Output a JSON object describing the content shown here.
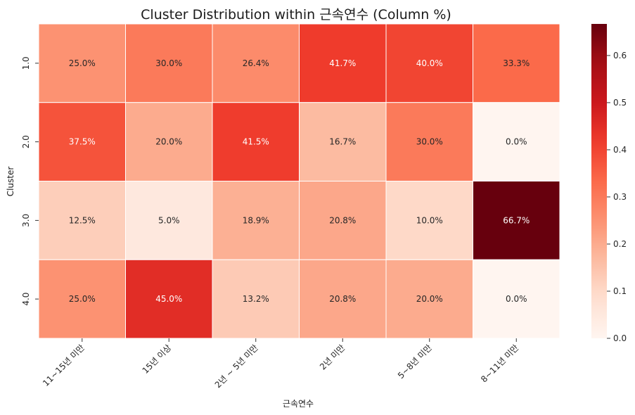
{
  "chart_data": {
    "type": "heatmap",
    "title": "Cluster Distribution within 근속연수 (Column %)",
    "xlabel": "근속연수",
    "ylabel": "Cluster",
    "x_categories": [
      "11~15년 미만",
      "15년 이상",
      "2년 ~ 5년 미만",
      "2년 미만",
      "5~8년 미만",
      "8~11년 미만"
    ],
    "y_categories": [
      "1.0",
      "2.0",
      "3.0",
      "4.0"
    ],
    "values": [
      [
        0.25,
        0.3,
        0.264,
        0.417,
        0.4,
        0.333
      ],
      [
        0.375,
        0.2,
        0.415,
        0.167,
        0.3,
        0.0
      ],
      [
        0.125,
        0.05,
        0.189,
        0.208,
        0.1,
        0.667
      ],
      [
        0.25,
        0.45,
        0.132,
        0.208,
        0.2,
        0.0
      ]
    ],
    "annotations": [
      [
        "25.0%",
        "30.0%",
        "26.4%",
        "41.7%",
        "40.0%",
        "33.3%"
      ],
      [
        "37.5%",
        "20.0%",
        "41.5%",
        "16.7%",
        "30.0%",
        "0.0%"
      ],
      [
        "12.5%",
        "5.0%",
        "18.9%",
        "20.8%",
        "10.0%",
        "66.7%"
      ],
      [
        "25.0%",
        "45.0%",
        "13.2%",
        "20.8%",
        "20.0%",
        "0.0%"
      ]
    ],
    "colorbar": {
      "min": 0.0,
      "max": 0.667,
      "ticks": [
        0.0,
        0.1,
        0.2,
        0.3,
        0.4,
        0.5,
        0.6
      ],
      "tick_labels": [
        "0.0",
        "0.1",
        "0.2",
        "0.3",
        "0.4",
        "0.5",
        "0.6"
      ],
      "colormap": "Reds"
    },
    "grid": false
  }
}
